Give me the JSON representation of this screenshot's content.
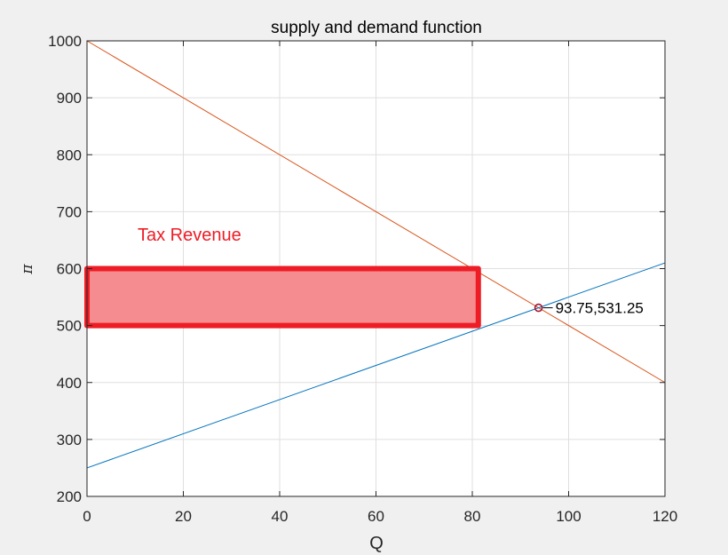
{
  "chart_data": {
    "type": "line",
    "title": "supply and demand function",
    "xlabel": "Q",
    "ylabel": "π",
    "xlim": [
      0,
      120
    ],
    "ylim": [
      200,
      1000
    ],
    "xticks": [
      0,
      20,
      40,
      60,
      80,
      100,
      120
    ],
    "yticks": [
      200,
      300,
      400,
      500,
      600,
      700,
      800,
      900,
      1000
    ],
    "grid": true,
    "series": [
      {
        "x": [
          0,
          120
        ],
        "y": [
          1000,
          400
        ],
        "color": "#d95319"
      },
      {
        "x": [
          0,
          120
        ],
        "y": [
          250,
          610
        ],
        "color": "#0072bd"
      }
    ],
    "equilibrium": {
      "x": 93.75,
      "y": 531.25,
      "label": "93.75,531.25",
      "color": "#a2142f"
    },
    "tax_region": {
      "x": [
        0,
        81.25
      ],
      "y": [
        500,
        600
      ],
      "fill": "#f58c8f",
      "border": "#ee1c25"
    },
    "annotation": {
      "text": "Tax Revenue",
      "x": 10.5,
      "y": 660,
      "color": "#ee1c25"
    }
  }
}
